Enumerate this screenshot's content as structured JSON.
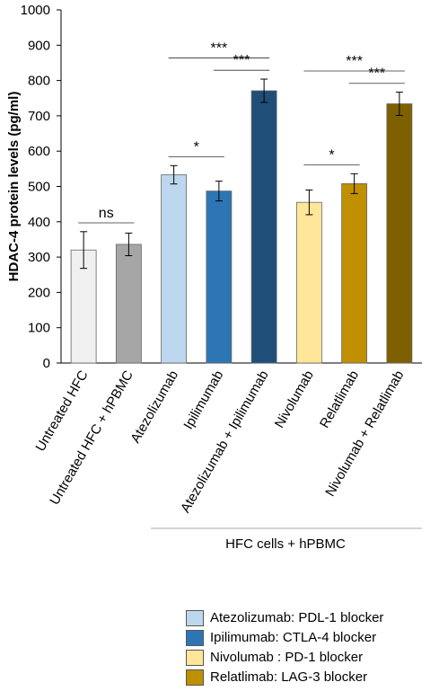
{
  "chart_data": {
    "type": "bar",
    "title": "",
    "ylabel": "HDAC-4 protein levels (pg/ml)",
    "xlabel": "",
    "ylim": [
      0,
      1000
    ],
    "yticks": [
      "0",
      "100",
      "200",
      "300",
      "400",
      "500",
      "600",
      "700",
      "800",
      "900",
      "1000"
    ],
    "grid": false,
    "categories": [
      "Untreated  HFC",
      "Untreated  HFC + hPBMC",
      "Atezolizumab",
      "Ipilimumab",
      "Atezolizumab + Ipilimumab",
      "Nivolumab",
      "Relatlimab",
      "Nivolumab + Relatlimab"
    ],
    "values": [
      320,
      336,
      533,
      487,
      771,
      455,
      508,
      734
    ],
    "errors": [
      52,
      32,
      26,
      28,
      33,
      35,
      28,
      33
    ],
    "colors": [
      "#f0f0f0",
      "#a6a6a6",
      "#bdd7ee",
      "#2e75b6",
      "#1f4e79",
      "#ffe699",
      "#bf9000",
      "#7f6000"
    ],
    "significance": [
      {
        "from": 0,
        "to": 1,
        "label": "ns"
      },
      {
        "from": 2,
        "to": 3,
        "label": "*"
      },
      {
        "from": 3,
        "to": 4,
        "label": "***"
      },
      {
        "from": 2,
        "to": 4,
        "label": "***"
      },
      {
        "from": 5,
        "to": 6,
        "label": "*"
      },
      {
        "from": 6,
        "to": 7,
        "label": "***"
      },
      {
        "from": 5,
        "to": 7,
        "label": "***"
      }
    ],
    "group_label": "HFC cells + hPBMC",
    "legend": [
      {
        "label": "Atezolizumab:  PDL-1 blocker",
        "color": "#bdd7ee"
      },
      {
        "label": "Ipilimumab: CTLA-4 blocker",
        "color": "#2e75b6"
      },
      {
        "label": "Nivolumab : PD-1 blocker",
        "color": "#ffe699"
      },
      {
        "label": "Relatlimab: LAG-3 blocker",
        "color": "#bf9000"
      }
    ]
  }
}
